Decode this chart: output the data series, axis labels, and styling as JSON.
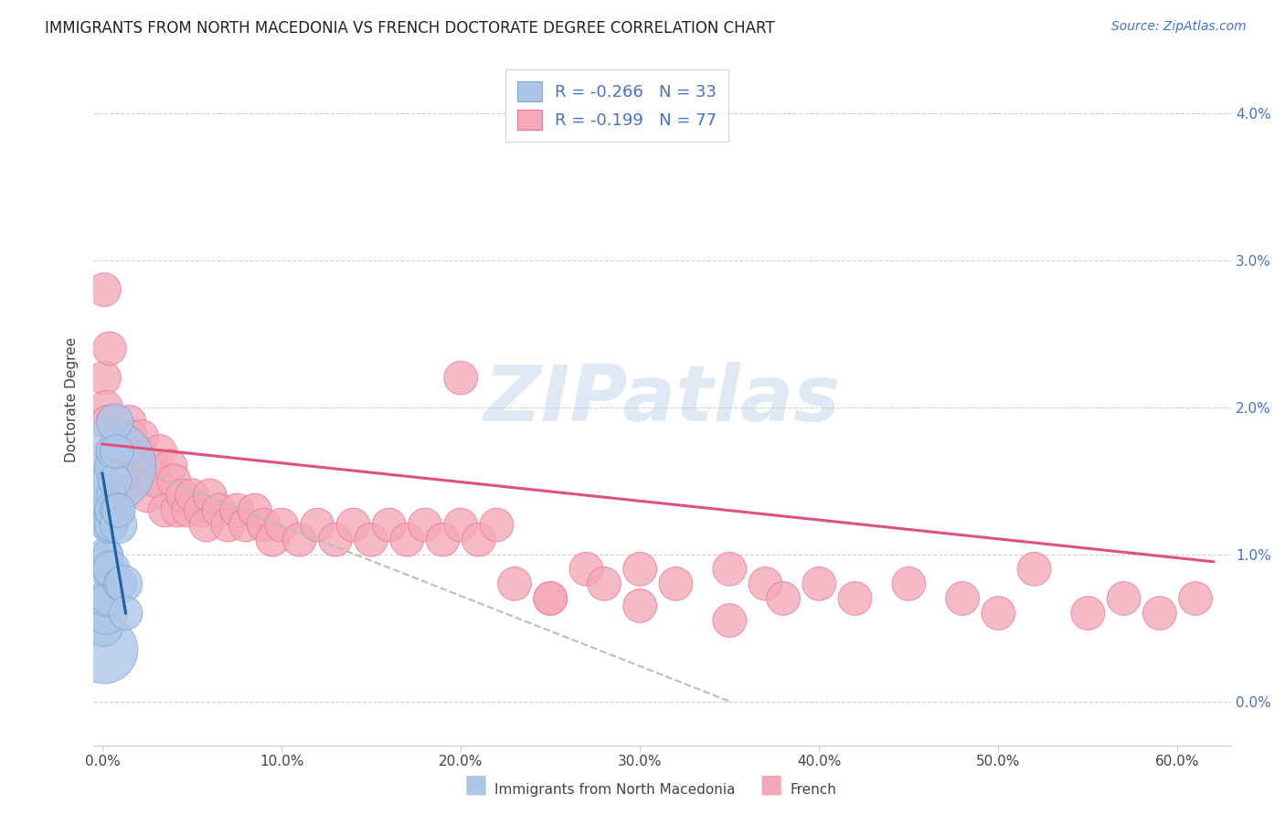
{
  "title": "IMMIGRANTS FROM NORTH MACEDONIA VS FRENCH DOCTORATE DEGREE CORRELATION CHART",
  "source": "Source: ZipAtlas.com",
  "ylabel": "Doctorate Degree",
  "xlabel_ticks": [
    "0.0%",
    "10.0%",
    "20.0%",
    "30.0%",
    "40.0%",
    "50.0%",
    "60.0%"
  ],
  "xlabel_vals": [
    0.0,
    0.1,
    0.2,
    0.3,
    0.4,
    0.5,
    0.6
  ],
  "ylabel_ticks": [
    "0.0%",
    "1.0%",
    "2.0%",
    "3.0%",
    "4.0%"
  ],
  "ylabel_vals": [
    0.0,
    0.01,
    0.02,
    0.03,
    0.04
  ],
  "xlim": [
    -0.005,
    0.63
  ],
  "ylim": [
    -0.003,
    0.044
  ],
  "blue_color": "#adc6e8",
  "pink_color": "#f4a8b8",
  "blue_edge_color": "#7aaad0",
  "pink_edge_color": "#e87898",
  "blue_line_color": "#1a5fa8",
  "pink_line_color": "#e0507a",
  "dash_line_color": "#bbbbbb",
  "legend_R_blue": "-0.266",
  "legend_N_blue": "33",
  "legend_R_pink": "-0.199",
  "legend_N_pink": "77",
  "watermark": "ZIPatlas",
  "blue_scatter": {
    "x": [
      0.001,
      0.001,
      0.001,
      0.002,
      0.002,
      0.002,
      0.002,
      0.002,
      0.003,
      0.003,
      0.003,
      0.003,
      0.003,
      0.003,
      0.004,
      0.004,
      0.004,
      0.004,
      0.005,
      0.005,
      0.005,
      0.005,
      0.006,
      0.006,
      0.007,
      0.007,
      0.008,
      0.008,
      0.009,
      0.009,
      0.01,
      0.012,
      0.013
    ],
    "y": [
      0.0035,
      0.005,
      0.007,
      0.006,
      0.007,
      0.009,
      0.01,
      0.014,
      0.007,
      0.009,
      0.01,
      0.012,
      0.013,
      0.015,
      0.009,
      0.012,
      0.013,
      0.016,
      0.009,
      0.012,
      0.014,
      0.016,
      0.013,
      0.017,
      0.015,
      0.019,
      0.013,
      0.017,
      0.012,
      0.013,
      0.008,
      0.008,
      0.006
    ],
    "sizes": [
      200,
      60,
      40,
      80,
      60,
      40,
      50,
      50,
      50,
      60,
      40,
      50,
      50,
      60,
      50,
      60,
      40,
      380,
      60,
      50,
      40,
      50,
      60,
      50,
      50,
      60,
      50,
      50,
      60,
      50,
      50,
      60,
      50
    ]
  },
  "pink_scatter": {
    "x": [
      0.001,
      0.001,
      0.002,
      0.003,
      0.004,
      0.005,
      0.006,
      0.007,
      0.008,
      0.009,
      0.01,
      0.011,
      0.012,
      0.013,
      0.015,
      0.016,
      0.017,
      0.018,
      0.02,
      0.022,
      0.025,
      0.028,
      0.03,
      0.032,
      0.035,
      0.038,
      0.04,
      0.042,
      0.045,
      0.048,
      0.05,
      0.055,
      0.058,
      0.06,
      0.065,
      0.07,
      0.075,
      0.08,
      0.085,
      0.09,
      0.095,
      0.1,
      0.11,
      0.12,
      0.13,
      0.14,
      0.15,
      0.16,
      0.17,
      0.18,
      0.19,
      0.2,
      0.21,
      0.22,
      0.23,
      0.25,
      0.27,
      0.28,
      0.3,
      0.32,
      0.35,
      0.37,
      0.38,
      0.4,
      0.42,
      0.45,
      0.48,
      0.5,
      0.52,
      0.55,
      0.57,
      0.59,
      0.61,
      0.35,
      0.3,
      0.25,
      0.2
    ],
    "y": [
      0.028,
      0.022,
      0.02,
      0.019,
      0.024,
      0.017,
      0.019,
      0.016,
      0.018,
      0.015,
      0.017,
      0.016,
      0.018,
      0.015,
      0.019,
      0.018,
      0.016,
      0.015,
      0.017,
      0.018,
      0.014,
      0.016,
      0.015,
      0.017,
      0.013,
      0.016,
      0.015,
      0.013,
      0.014,
      0.013,
      0.014,
      0.013,
      0.012,
      0.014,
      0.013,
      0.012,
      0.013,
      0.012,
      0.013,
      0.012,
      0.011,
      0.012,
      0.011,
      0.012,
      0.011,
      0.012,
      0.011,
      0.012,
      0.011,
      0.012,
      0.011,
      0.012,
      0.011,
      0.012,
      0.008,
      0.007,
      0.009,
      0.008,
      0.009,
      0.008,
      0.009,
      0.008,
      0.007,
      0.008,
      0.007,
      0.008,
      0.007,
      0.006,
      0.009,
      0.006,
      0.007,
      0.006,
      0.007,
      0.0055,
      0.0065,
      0.007,
      0.022
    ],
    "sizes": [
      50,
      50,
      50,
      50,
      50,
      50,
      50,
      50,
      50,
      50,
      50,
      50,
      50,
      50,
      50,
      50,
      50,
      50,
      50,
      50,
      50,
      50,
      50,
      50,
      50,
      50,
      50,
      50,
      50,
      50,
      50,
      50,
      50,
      50,
      50,
      50,
      50,
      50,
      50,
      50,
      50,
      50,
      50,
      50,
      50,
      50,
      50,
      50,
      50,
      50,
      50,
      50,
      50,
      50,
      50,
      50,
      50,
      50,
      50,
      50,
      50,
      50,
      50,
      50,
      50,
      50,
      50,
      50,
      50,
      50,
      50,
      50,
      50,
      50,
      50,
      50,
      50
    ]
  },
  "blue_trendline": {
    "x": [
      0.0,
      0.013
    ],
    "y": [
      0.0155,
      0.006
    ]
  },
  "pink_trendline": {
    "x": [
      0.0,
      0.62
    ],
    "y": [
      0.0175,
      0.0095
    ]
  },
  "dashed_trendline": {
    "x": [
      0.005,
      0.35
    ],
    "y": [
      0.0165,
      0.0
    ]
  }
}
